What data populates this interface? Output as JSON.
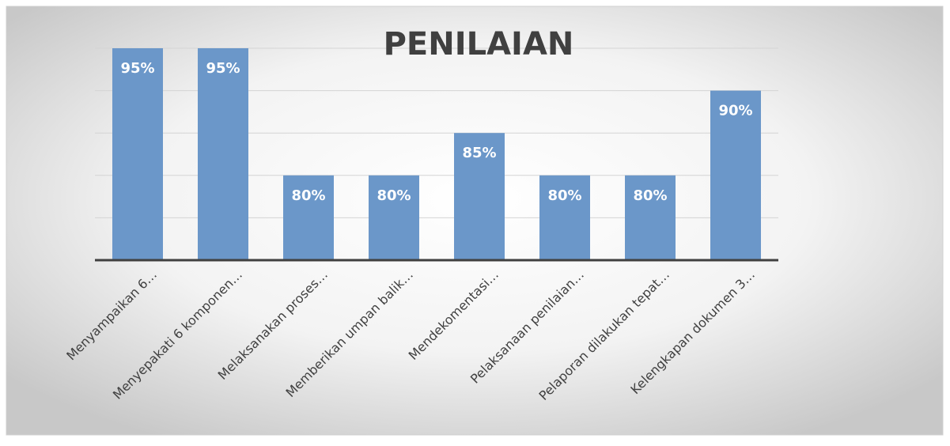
{
  "chart_data": {
    "type": "bar",
    "title": "PENILAIAN",
    "categories": [
      "Menyampaikan 6…",
      "Menyepakati 6 komponen…",
      "Melaksanakan proses…",
      "Memberikan umpan balik…",
      "Mendekomentasi…",
      "Pelaksanaan penilaian…",
      "Pelaporan dilakukan tepat…",
      "Kelengkapan dokumen 3…"
    ],
    "values": [
      95,
      95,
      80,
      80,
      85,
      80,
      80,
      90
    ],
    "value_labels": [
      "95%",
      "95%",
      "80%",
      "80%",
      "85%",
      "80%",
      "80%",
      "90%"
    ],
    "color": "#6b97c9",
    "ylim": [
      70,
      95
    ],
    "yticks": [
      70,
      75,
      80,
      85,
      90,
      95
    ],
    "grid": true
  }
}
